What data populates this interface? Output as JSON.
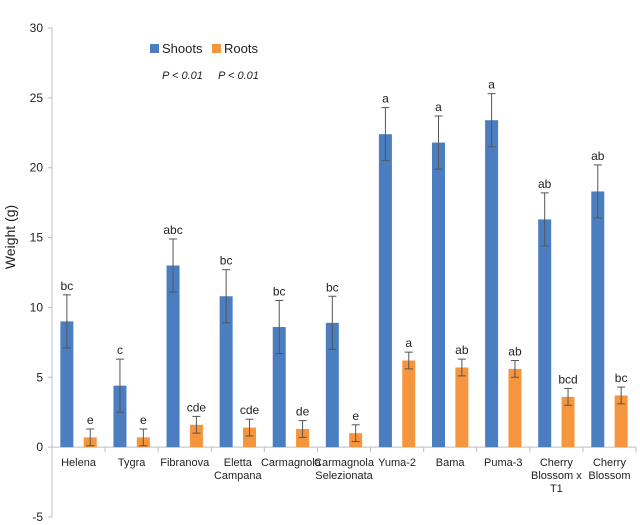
{
  "chart_data": {
    "type": "bar",
    "title": "",
    "xlabel": "",
    "ylabel": "Weight (g)",
    "ylim": [
      -5,
      30
    ],
    "yticks": [
      -5,
      0,
      5,
      10,
      15,
      20,
      25,
      30
    ],
    "grid": false,
    "legend_position": "top-left",
    "categories": [
      [
        "Helena"
      ],
      [
        "Tygra"
      ],
      [
        "Fibranova"
      ],
      [
        "Eletta",
        "Campana"
      ],
      [
        "Carmagnola"
      ],
      [
        "Carmagnola",
        "Selezionata"
      ],
      [
        "Yuma-2"
      ],
      [
        "Bama"
      ],
      [
        "Puma-3"
      ],
      [
        "Cherry",
        "Blossom x",
        "T1"
      ],
      [
        "Cherry",
        "Blossom"
      ]
    ],
    "series": [
      {
        "name": "Shoots",
        "color": "#4a7ec0",
        "values": [
          9.0,
          4.4,
          13.0,
          10.8,
          8.6,
          8.9,
          22.4,
          21.8,
          23.4,
          16.3,
          18.3
        ],
        "errors": [
          1.9,
          1.9,
          1.9,
          1.9,
          1.9,
          1.9,
          1.9,
          1.9,
          1.9,
          1.9,
          1.9
        ],
        "letters": [
          "bc",
          "c",
          "abc",
          "bc",
          "bc",
          "bc",
          "a",
          "a",
          "a",
          "ab",
          "ab"
        ],
        "p_value": "P < 0.01"
      },
      {
        "name": "Roots",
        "color": "#f5953d",
        "values": [
          0.7,
          0.7,
          1.6,
          1.4,
          1.3,
          1.0,
          6.2,
          5.7,
          5.6,
          3.6,
          3.7
        ],
        "errors": [
          0.6,
          0.6,
          0.6,
          0.6,
          0.6,
          0.6,
          0.6,
          0.6,
          0.6,
          0.6,
          0.6
        ],
        "letters": [
          "e",
          "e",
          "cde",
          "cde",
          "de",
          "e",
          "a",
          "ab",
          "ab",
          "bcd",
          "bc"
        ],
        "p_value": "P < 0.01"
      }
    ]
  }
}
